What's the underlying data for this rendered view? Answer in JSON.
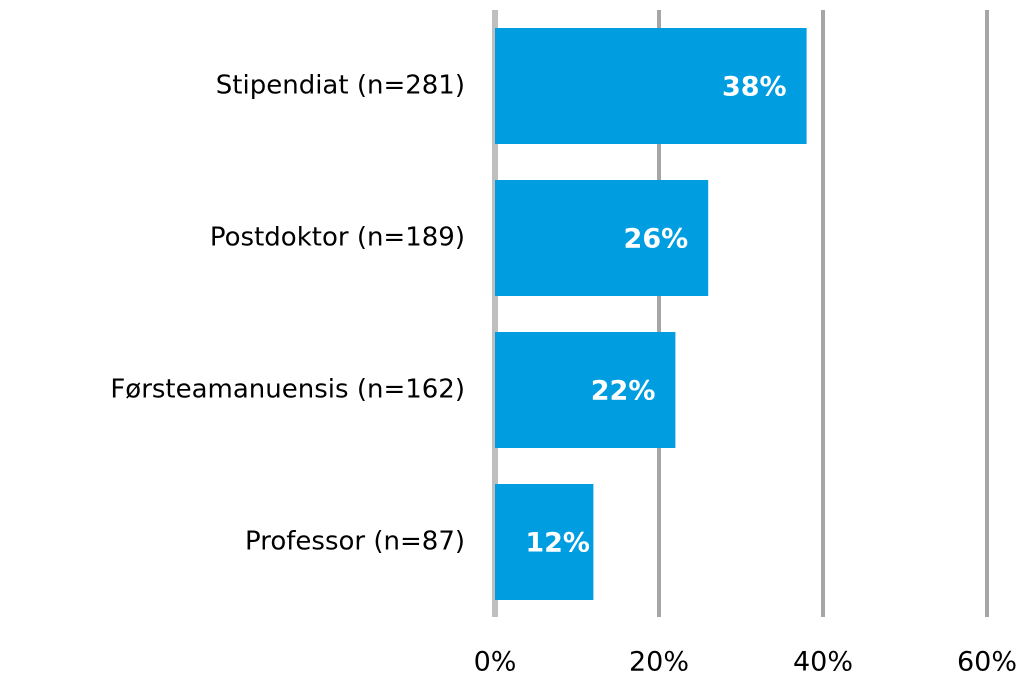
{
  "chart_data": {
    "type": "hbar",
    "categories": [
      "Stipendiat (n=281)",
      "Postdoktor (n=189)",
      "Førsteamanuensis (n=162)",
      "Professor (n=87)"
    ],
    "values": [
      38,
      26,
      22,
      12
    ],
    "value_labels": [
      "38%",
      "26%",
      "22%",
      "12%"
    ],
    "color": "#009de0",
    "xlim": [
      0,
      60
    ],
    "xticks": [
      {
        "value": 0,
        "label": "0%"
      },
      {
        "value": 20,
        "label": "20%"
      },
      {
        "value": 40,
        "label": "40%"
      },
      {
        "value": 60,
        "label": "60%"
      }
    ],
    "grid": true
  }
}
